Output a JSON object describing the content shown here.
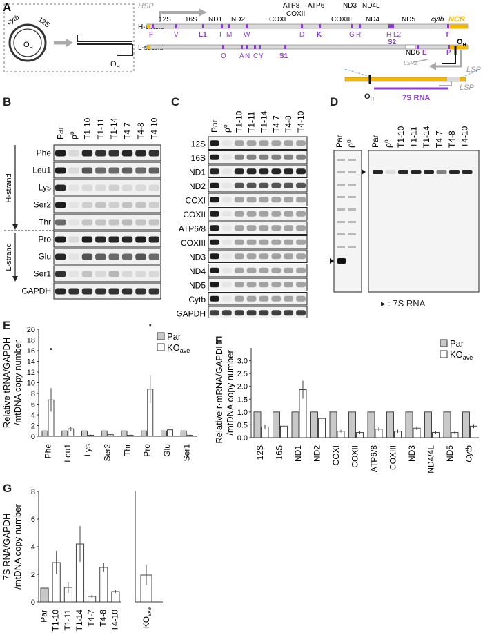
{
  "panel_letters": {
    "a": "A",
    "b": "B",
    "c": "C",
    "d": "D",
    "e": "E",
    "f": "F",
    "g": "G"
  },
  "map": {
    "hsp": "HSP",
    "lsp": "LSP",
    "lsp2": "LSP2",
    "oh": "O",
    "oh_sub": "H",
    "h_strand": "H-strand",
    "l_strand": "L-strand",
    "ncr": "NCR",
    "seven_s": "7S RNA",
    "circle_labels": {
      "cytb": "cytb",
      "r12s": "12S",
      "oh": "O",
      "oh_sub": "H"
    },
    "genes_top": [
      {
        "id": "12s",
        "label": "12S"
      },
      {
        "id": "16s",
        "label": "16S"
      },
      {
        "id": "nd1",
        "label": "ND1"
      },
      {
        "id": "nd2",
        "label": "ND2"
      },
      {
        "id": "coxi",
        "label": "COXI"
      },
      {
        "id": "atp8",
        "label": "ATP8"
      },
      {
        "id": "coxii",
        "label": "COXII"
      },
      {
        "id": "atp6",
        "label": "ATP6"
      },
      {
        "id": "nd3",
        "label": "ND3"
      },
      {
        "id": "coxiii",
        "label": "COXIII"
      },
      {
        "id": "nd4l",
        "label": "ND4L"
      },
      {
        "id": "nd4",
        "label": "ND4"
      },
      {
        "id": "nd5",
        "label": "ND5"
      },
      {
        "id": "cytb",
        "label": "cytb"
      },
      {
        "id": "nd6",
        "label": "ND6"
      }
    ],
    "trna_labels": [
      {
        "id": "F",
        "label": "F"
      },
      {
        "id": "V",
        "label": "V"
      },
      {
        "id": "L1",
        "label": "L1"
      },
      {
        "id": "I",
        "label": "I"
      },
      {
        "id": "M",
        "label": "M"
      },
      {
        "id": "W",
        "label": "W"
      },
      {
        "id": "D",
        "label": "D"
      },
      {
        "id": "K",
        "label": "K"
      },
      {
        "id": "G",
        "label": "G"
      },
      {
        "id": "R",
        "label": "R"
      },
      {
        "id": "H",
        "label": "H"
      },
      {
        "id": "L2",
        "label": "L2"
      },
      {
        "id": "S2",
        "label": "S2"
      },
      {
        "id": "T",
        "label": "T"
      },
      {
        "id": "Q",
        "label": "Q"
      },
      {
        "id": "A",
        "label": "A"
      },
      {
        "id": "N",
        "label": "N"
      },
      {
        "id": "C",
        "label": "C"
      },
      {
        "id": "Y",
        "label": "Y"
      },
      {
        "id": "S1",
        "label": "S1"
      },
      {
        "id": "E",
        "label": "E"
      },
      {
        "id": "P",
        "label": "P"
      }
    ]
  },
  "lanes": [
    "Par",
    "ρ⁰",
    "T1-10",
    "T1-11",
    "T1-14",
    "T4-7",
    "T4-8",
    "T4-10"
  ],
  "blot_b": {
    "rows": [
      "Phe",
      "Leu1",
      "Lys",
      "Ser2",
      "Thr",
      "Pro",
      "Glu",
      "Ser1",
      "GAPDH"
    ],
    "group_h": "H-strand",
    "group_l": "L-strand"
  },
  "blot_c": {
    "rows": [
      "12S",
      "16S",
      "ND1",
      "ND2",
      "COXI",
      "COXII",
      "ATP6/8",
      "COXIII",
      "ND3",
      "ND4",
      "ND5",
      "Cytb",
      "GAPDH"
    ]
  },
  "blot_d": {
    "legend": "▸ : 7S RNA"
  },
  "chart_data": [
    {
      "panel": "E",
      "type": "bar",
      "categories": [
        "Phe",
        "Leu1",
        "Lys",
        "Ser2",
        "Thr",
        "Pro",
        "Glu",
        "Ser1"
      ],
      "series": [
        {
          "name": "Par",
          "values": [
            1,
            1,
            1,
            1,
            1,
            1,
            1,
            1
          ],
          "color": "#c8c8c8"
        },
        {
          "name": "KO",
          "name_sub": "ave",
          "values": [
            6.8,
            1.4,
            0.2,
            0.3,
            0.2,
            8.8,
            1.2,
            0.2
          ],
          "color": "#ffffff"
        }
      ],
      "errors": [
        0,
        0,
        0,
        0,
        0,
        0,
        0,
        0
      ],
      "ko_errors": [
        2.2,
        0.4,
        0.1,
        0.1,
        0.1,
        2.6,
        0.3,
        0.1
      ],
      "ylabel": "Relative tRNA/GAPDH",
      "ylabel2": "/mtDNA copy number",
      "ylim": [
        0,
        20
      ],
      "yticks": [
        0,
        2,
        4,
        6,
        8,
        10,
        12,
        14,
        16,
        18,
        20
      ],
      "outliers": [
        {
          "cat": "Phe",
          "value": 16.3
        },
        {
          "cat": "Pro",
          "value": 21.2
        }
      ]
    },
    {
      "panel": "F",
      "type": "bar",
      "categories": [
        "12S",
        "16S",
        "ND1",
        "ND2",
        "COXI",
        "COXII",
        "ATP6/8",
        "COXIII",
        "ND3",
        "ND4/4L",
        "ND5",
        "Cytb"
      ],
      "series": [
        {
          "name": "Par",
          "values": [
            1,
            1,
            1,
            1,
            1,
            1,
            1,
            1,
            1,
            1,
            1,
            1
          ],
          "color": "#c8c8c8"
        },
        {
          "name": "KO",
          "name_sub": "ave",
          "values": [
            0.42,
            0.45,
            1.87,
            0.75,
            0.25,
            0.2,
            0.33,
            0.25,
            0.37,
            0.2,
            0.2,
            0.45
          ],
          "color": "#ffffff"
        }
      ],
      "ko_errors": [
        0.08,
        0.08,
        0.35,
        0.12,
        0.05,
        0.05,
        0.07,
        0.06,
        0.07,
        0.05,
        0.05,
        0.08
      ],
      "ylabel": "Relative r·mRNA/GAPDH",
      "ylabel2": "/mtDNA copy number",
      "ylim": [
        0,
        3.5
      ],
      "yticks": [
        0.0,
        0.5,
        1.0,
        1.5,
        2.0,
        2.5,
        3.0
      ],
      "ytick_labels": [
        "0.0",
        "0.5",
        "1.0",
        "1.5",
        "2.0",
        "2.5",
        "3.0"
      ]
    },
    {
      "panel": "G",
      "type": "bar",
      "categories": [
        "Par",
        "T1-10",
        "T1-11",
        "T1-14",
        "T4-7",
        "T4-8",
        "T4-10"
      ],
      "values": [
        1,
        2.85,
        1.05,
        4.2,
        0.4,
        2.5,
        0.75
      ],
      "errors": [
        0,
        0.85,
        0.4,
        1.3,
        0.1,
        0.3,
        0.1
      ],
      "colors": [
        "#c8c8c8",
        "#ffffff",
        "#ffffff",
        "#ffffff",
        "#ffffff",
        "#ffffff",
        "#ffffff"
      ],
      "ko_label": "KO",
      "ko_label_sub": "ave",
      "ko_value": 1.95,
      "ko_error": 0.7,
      "ylabel": "7S RNA/GAPDH",
      "ylabel2": "/mtDNA copy number",
      "ylim": [
        0,
        8
      ],
      "yticks": [
        0,
        2,
        4,
        6,
        8
      ]
    }
  ],
  "colors": {
    "trna": "#8a3fd0",
    "hsp": "#999999",
    "ncr": "#f5b800",
    "lsp": "#999999",
    "seven_s": "#8a3fd0"
  }
}
